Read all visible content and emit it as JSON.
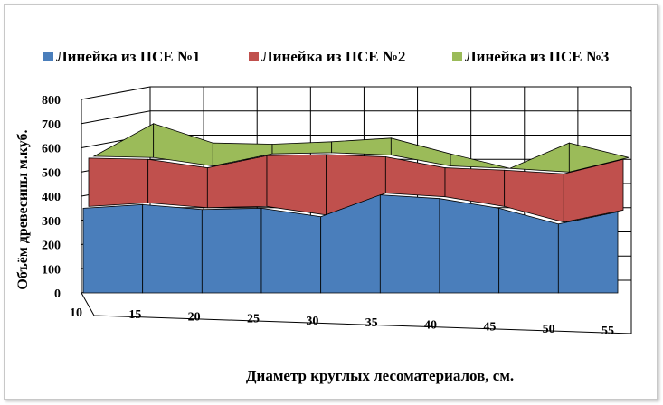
{
  "chart_data": {
    "type": "area",
    "subtype": "3d-stacked",
    "categories": [
      "10",
      "15",
      "20",
      "25",
      "30",
      "35",
      "40",
      "45",
      "50",
      "55"
    ],
    "series": [
      {
        "name": "Линейка из ПСЕ №1",
        "color": "#4a7ebb",
        "values": [
          350,
          365,
          345,
          350,
          315,
          405,
          390,
          350,
          285,
          335
        ]
      },
      {
        "name": "Линейка из ПСЕ №2",
        "color": "#c0504d",
        "values": [
          200,
          180,
          165,
          210,
          250,
          150,
          120,
          150,
          200,
          210
        ]
      },
      {
        "name": "Линейка из ПСЕ №3",
        "color": "#9bbb59",
        "values": [
          0,
          140,
          95,
          40,
          45,
          70,
          50,
          0,
          120,
          0
        ]
      }
    ],
    "xlabel": "Диаметр круглых лесоматериалов, см.",
    "ylabel": "Объём древесины м.куб.",
    "ylim": [
      0,
      800
    ],
    "yticks": [
      "0",
      "100",
      "200",
      "300",
      "400",
      "500",
      "600",
      "700",
      "800"
    ],
    "grid": true,
    "legend": "top"
  }
}
